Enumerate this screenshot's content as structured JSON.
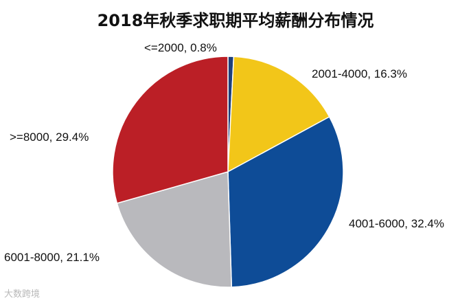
{
  "chart_data": {
    "type": "pie",
    "title": "2018年秋季求职期平均薪酬分布情况",
    "slices": [
      {
        "label": "<=2000",
        "value": 0.8,
        "value_label": "0.8%",
        "color": "#1d3f7a"
      },
      {
        "label": "2001-4000",
        "value": 16.3,
        "value_label": "16.3%",
        "color": "#f2c619"
      },
      {
        "label": "4001-6000",
        "value": 32.4,
        "value_label": "32.4%",
        "color": "#0e4c97"
      },
      {
        "label": "6001-8000",
        "value": 21.1,
        "value_label": "21.1%",
        "color": "#b9b9bd"
      },
      {
        "label": ">=8000",
        "value": 29.4,
        "value_label": "29.4%",
        "color": "#bb1f26"
      }
    ],
    "start_angle_deg": 0,
    "direction": "clockwise"
  },
  "watermark": "大数跨境"
}
